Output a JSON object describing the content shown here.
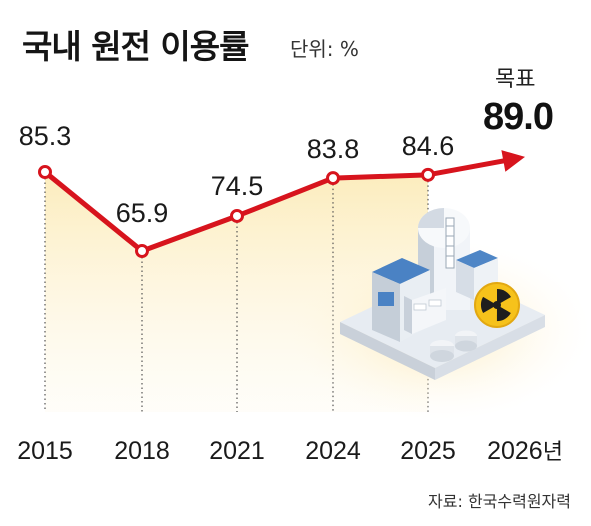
{
  "title": "국내 원전 이용률",
  "unit_label": "단위: %",
  "target": {
    "label": "목표",
    "value": "89.0"
  },
  "source": "자료: 한국수력원자력",
  "colors": {
    "line": "#d7141d",
    "area": "#fbe6a6",
    "marker_fill": "#ffffff"
  },
  "chart_data": {
    "type": "line",
    "title": "국내 원전 이용률",
    "categories": [
      "2015",
      "2018",
      "2021",
      "2024",
      "2025",
      "2026년"
    ],
    "series": [
      {
        "values": [
          85.3,
          65.9,
          74.5,
          83.8,
          84.6,
          89.0
        ]
      }
    ],
    "data_labels": [
      "85.3",
      "65.9",
      "74.5",
      "83.8",
      "84.6",
      "89.0"
    ],
    "projected_last_point": true,
    "ylabel": "",
    "xlabel": "",
    "grid": false
  }
}
